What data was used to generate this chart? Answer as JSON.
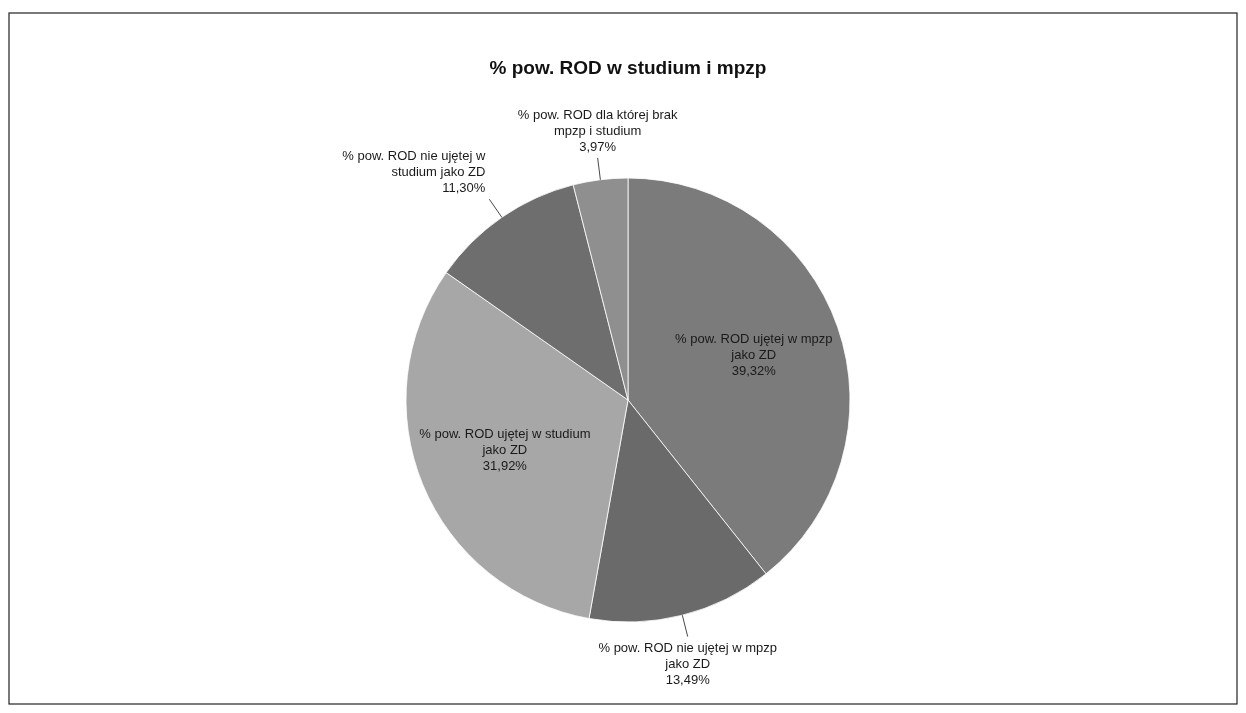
{
  "chart_data": {
    "type": "pie",
    "title": "% pow. ROD w studium i mpzp",
    "categories": [
      "% pow. ROD ujętej w mpzp jako ZD",
      "% pow. ROD nie ujętej w mpzp jako ZD",
      "% pow. ROD ujętej w studium jako ZD",
      "% pow. ROD nie ujętej w studium jako ZD",
      "% pow. ROD dla której brak mpzp i studium"
    ],
    "values": [
      39.32,
      13.49,
      31.92,
      11.3,
      3.97
    ],
    "colors": [
      "#7b7b7b",
      "#6a6a6a",
      "#a7a7a7",
      "#6e6e6e",
      "#8f8f8f"
    ],
    "value_labels": [
      "39,32%",
      "13,49%",
      "31,92%",
      "11,30%",
      "3,97%"
    ]
  }
}
